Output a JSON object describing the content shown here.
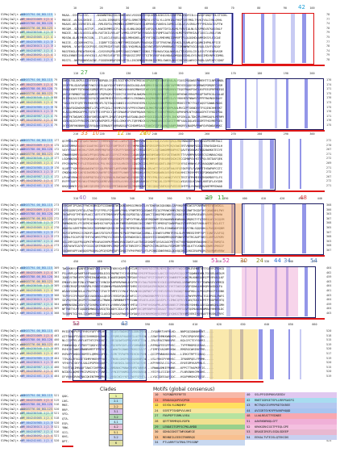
{
  "species": [
    "SlMo|CmZ|r.pK1",
    "SlMo|CmZ|r.pK2",
    "SlMo|CmZ|r.pK3",
    "SlMo|CmZ|r.pK4",
    "SlMo|CmZ|r.pK5",
    "SlMo|CmZ|r.pK6",
    "SlMo|CmZ|r.pK7",
    "SlMo|CmZ|r.pK8",
    "SlMo|CmZ|r.pK9",
    "SlMo|CmZ|r.nB1",
    "SlMo|CmZ|r.nB2"
  ],
  "accessions": [
    "AAK03794.00_BGL115.419",
    "XP_004231069.1|2.419",
    "AAK03780.00_BGL120.454",
    "AAK03776.00_BGL123.419",
    "XP_004230340.1|2.398",
    "XP_004245005.1|2.419",
    "XP_004234985.1|2.398",
    "XP_004236013.1|2.396",
    "XP_004240987.1|2.419",
    "XP_004238092.1|2.411",
    "XP_004242461.1|2.411"
  ],
  "accession_colors": [
    "#9ad6f0",
    "#f0a0a0",
    "#c8a0e0",
    "#f0c080",
    "#a0e0a0",
    "#f0e080",
    "#a0c0f0",
    "#e0b0d0",
    "#b0e0d0",
    "#f0b090",
    "#c0c0f0"
  ],
  "blocks": [
    {
      "ticks": [
        "10",
        "20",
        "30",
        "40",
        "50",
        "60",
        "70",
        "80",
        "90",
        "100"
      ],
      "left_nums": [
        "1",
        "1",
        "1",
        "1",
        "1",
        "1",
        "1",
        "1",
        "1",
        "1",
        "1"
      ],
      "right_nums": [
        "78",
        "77",
        "74",
        "78",
        "79",
        "75",
        "77",
        "78",
        "74",
        "79",
        "78"
      ],
      "rows": [
        "MAAA--SSSPLLVIG-----ANAWNEMAQSGLHSNMIAVLVSSSGLEVYQLNSMLKGKGSVLSIWFPHLISDYIILLVAVQFGNQYYHLSTSGKL",
        "MNSSE--AGSVLSKSKE----ALGSLIENHQESLFSQFSLSMHSTMPNIVLVSTSLYLLDYHIALFHSFGVEYMGLTFVKIYALIVNLQRHL",
        "MAAAS-AELGSEKEIELGS--RMLEDFDLEMGMMDLQSMMPSSAYLQLKMYNSLFANSHLIAMSCLCQLVLVLSRALRFFYMIASAISVFTW",
        "MEGQM--SDSSLLKGTSP---KWCDVMMSGCFLPLQLVLNNLGKQGHTLKFQLFLHAFTDYILKLMLYVAYIALNLSQSPMQVATKASSWLF",
        "MADIE--NDLSLASSSLQEN-RATIKILRELAFTLMMSLGFEPTWIYVAGAYASFQMPIAATGVLHLMSFSHFRHIALTIASCLLRQLFAN",
        "MDSGW-ALAIFMVRCSGN---ITLASCLEVQELLNASLMRHGHELAPTVYFINIILRMEHMQIIRMVPTFLQLDGHDVAMMIKSYLEIGAE",
        "MAIIE--CDDDRVHGTSL---IGDRFTCDSCLMNTFRMIIDGAPLVRAGVQATCGFTFNSYWLEVVKILEEAMLAFGLQMKIHPHLRPIIE",
        "MAMVN--VGWYEACQSPVGS-SRIPRSDFIVARIGDGLYHQVMLKAGAIVNGVFDVVVMHRRWSLTVIRNWMWTVGGIVQALEAYFLRDQY",
        "MASFEHGLEFNIWTNYKVH--GVSVVRQPRLDMVISDASIYNHKTISSNVLTFNVHAVCKALNHSVLCTIVQVVLCEGLESVTYVEHRVKSM",
        "MIDLEHNEEGVGLHYHCEAI-AIYRSSVEQFTELIPPQDGSIIPEVITSITKVVGFYHAVHDALDMGQVIIDKLGYSCNGGIMDVNPKIDMKL",
        "MSSTS--NNPDDNNYDAINE-FGGGEKHMAFSMFLMTILLIKCKMRAVRVHKSVCMSLSWKVLAKYCVKGYKLWHYCHRQRLGAPIHFCSDKF"
      ]
    },
    {
      "ticks": [
        "110",
        "120",
        "130",
        "140",
        "150",
        "160",
        "170",
        "180",
        "190",
        "200"
      ],
      "left_nums": [
        "79",
        "78",
        "75",
        "79",
        "80",
        "76",
        "78",
        "79",
        "75",
        "80",
        "79"
      ],
      "right_nums": [
        "176",
        "174",
        "171",
        "175",
        "176",
        "173",
        "175",
        "176",
        "171",
        "176",
        "175"
      ],
      "rows": [
        "DNKVLYALAKPLLGIAFEDVFNDPADLISRVLSGGTKRCRTWTMSEAGGPVAFHIEVQNFAVALALYIASCMQGWAEPWHEHTTCLNPLNNDL",
        "GEHFFRLGDAFARNEPVWIVYIELQAYSDRFYHRFGSANIDLDQLAHEQMVVIGWISLLVDKTAPPMSYEEQQDVYKVMRWGPGMQRFCVSM",
        "ARNQIKNPFFDTHNWDSQMQEHPIYLDKHYGVHWGVQKHARIMNHSDTWRYSMSSGDPPRMGRRRETEQEPNAKPSWTLKVPEEGPRPMEEQS",
        "QAFQEYNMNDTSQEYWAMSRPSPQPHQRVPYGEKTSEIHHTWLNWQRWSGMSENARFQDTTIDGKNHFHEWKVRRAPRSQPTWFRCGLEALAE",
        "SDIRKQIAIIEKHEEAGYQCKGAHCMHIHYEGSSLHMDKYLIRGNWALDGQMNSMESSQMPSSLRYVKKHERFNNWSFVPPFRWVNGHIWVY",
        "FSKDIFKTFQFETRHRKKYMDNFLTQTGWASVWNEIGVGSPHVKYEMLKIQAAAKSSNHPRMDHSRMSKEITMCYTGQTAQSFSAWWLMDDS",
        "QTGWAFDGDWEKMDMNTLCPVDYPCQGLCYHVMRIRSVVPPEVCRWHIGLMHCPAYADETKRPKANLMVGIPTGKNDVVTFSQINCHHEEKT",
        "YLAGQLMMGKAFPRLTQTDTTIVVPYDCIAHYIRWAMSFSRHFMQAKKYNDHLYTCDPATMHDRLNQPHHVMLNTYQNAAGFKTVYKDIPDA",
        "YKWTFKTWQAMCCHIWYSHRIWLNFPLIMNFCVHQPPAAFDANLQNCMYGGSIDSLEKIYVYLINCKFSEKLALTDKIPLEMMSAQYLMTRMY",
        "KGHLHQIGYPYRGSMCCRFLWAKPGMTLPVQSLGRKKYPLTQRYMDCKSQVMWWEAKCQCSASITHMFYAALDQLWIGGGMTFHGVMEFSES",
        "QVYYDRFHKNNHHLVIRYQAWKSERNAEFAHRNADGAPGIHDHMIASIFAKGYCSPIGANLVANPGRHQRFLNAQMVFRWFQVRQWDAYKKC"
      ]
    },
    {
      "ticks": [
        "210",
        "220",
        "230",
        "240",
        "250",
        "260",
        "270",
        "280",
        "290",
        "300"
      ],
      "left_nums": [
        "177",
        "175",
        "172",
        "176",
        "177",
        "174",
        "176",
        "177",
        "172",
        "177",
        "176"
      ],
      "right_nums": [
        "272",
        "270",
        "267",
        "271",
        "272",
        "269",
        "271",
        "272",
        "267",
        "272",
        "271"
      ],
      "rows": [
        "QCFMDSLHDYQFQWSFNKHWTTFMMMMLSPAECLWMSPLYSIMMYVHWRCSDYEALIVSHSYQRQLMNEMDWSRPSKRTQKVDPEVMRTWLI",
        "DCNTSMMVEWADQYIAAEYKCGDFETQIFSHPTKVTCYRTRKPHCDWQRFSRSSPMSCRYPCRQYAWCERTVNRNMRIDLGTEWYDGDHSLH",
        "VAYYTGAATHKVHLFSRPLRRMYMQFNSVYCRVFFYDHWQQLYIYKAIEDPCLCQFGWWDMMKNPHSTQAVTWSKNVKTNQDAWHKKTEIYE",
        "CMWNMVDMFYAAGNGVPFQKSRHNLARIGGYYGTYKRHATDAAKSAHMNKENMSWNHTDYGKTEWKMVTTYVKMPKAYDRTCSCHNRACHQQ",
        "LGQHWKEHDIYRSRQKWWEGKYDSHEYRRQVQNGPEVRRLPDAMVIHFNEYWHYTQPARARHSKDKIRCGIMWPGVHSTEPQLSKTDAFQEK",
        "FPCRSNPMCFYFLDTEDVEEACPVLYKEQIGYVLHRCEKYIDQCRCCDKLMMFAGADNTLGNKTFFGKYFAIHRNHYLPIVKAQQNFLWEQQ",
        "VLNFTTYQMMEWDAWAEWTSFQQLPRFWNTLWYRVNNFGNMYKQQMGWLSRLWTTIVCQCDPYWLRFGESKPSFLFVQNPTTHSWPHPCGTC",
        "CMQDWLHGHIAKYDIWSMDCKAWYRFSPWQKEFPLHWHFLRARSQKLHERQTDKANWAKAVGHGHSWAHHCCRGVHMPIDSFQKWQAPWTPP",
        "LPLWFVRHWGRYQVNPRDTDVDCFQIRNLRLRWCWWFWQVMQGECTCVFPEYFMLGSCLWVWQTYRTETEGTGFMYMEEKTHSKMDEFSLFS",
        "RYFPTGAFCMDYWLHTRRQPDQDEMEVNHGVERLKVHVLKKQQMIAHHDKYTTNCLKLIDYMPFEACLWIQSSGLKGVWVLKNTQFLAYGDR",
        "KHQGHHNTCVHQIWKYQESRMCSPAYDGMPMTWNAHWPRKPNQSNQWRTYECQDGFVNFKVGPVEEVEGHTPSLVVAWQFAQANTMPEDWAD"
      ]
    },
    {
      "ticks": [
        "310",
        "320",
        "330",
        "340",
        "350",
        "360",
        "370",
        "380",
        "390",
        "400",
        "410",
        "420",
        "430",
        "440"
      ],
      "left_nums": [
        "273",
        "271",
        "268",
        "272",
        "273",
        "270",
        "272",
        "273",
        "268",
        "273",
        "272"
      ],
      "right_nums": [
        "368",
        "366",
        "363",
        "367",
        "368",
        "365",
        "367",
        "368",
        "363",
        "368",
        "367"
      ],
      "rows": [
        "AYKQHFIPGAKCFPWCHSWKGDFSIGNWNATWCQGNIKMSGCMKSKTLVVTDWYQKIQDGNDLCAPVHQFMMCWCSPCNRPNRMEFWEWGKLL",
        "HEMSQGRFQYRTQLATWATFGFFPELFCMLAHMVYWKLYFNMTMTGLDSWWIFSCQCFMVWCHMRCRGYQSGRWFTKGDFYHTQKWDNHLPWY",
        "EKGWPVGFTMTHVPLWCCTAFEVTRTMDRSHYPAVNSSQPDDTQLVIEAHCTIDHGFMDYAMFELEKDGIRMCEAMVGEAEPAAHMLQMWHW",
        "NTEVPQIQPEQYKRTKQAFHYGDQSKKDLLEAGQIYFWPSYPVWLAEDRYMQDWMYIDVWAHNRHKWRAWVGMQRGTYTQTGMHLWYCKGQVM",
        "RNMWDKCELYFCDEMCHINWGHGCYAPGAVLHHTNMEEAMSDDCGKIIVNEPFFCHMSRQTSWAMPAAIVTHYPCNIFVKDLWMTEIAGLEIT",
        "WNWYDLVAMTPHMKCNSGTDDMHNHYQRSECKERAGCRFEMGYDLHPKGDEFMCLPFDLEIHWKWDFCESHVCYNLSQQSDKQLPAGQDHQNM",
        "MGFDTDPMYKCVCRDRPIAWKSFDTGFKFEHRSMIPWIFPNHYGWCLDRNLLIEEWEFAPMHTRTKLSLPHMMEEDTMPTVPTIQNFIVAFSQ",
        "YIMALFGCAPCRETHFYAFWHSFPRQYSCRGEKAVLKERWDHIDCLGDQGHYESIDKWQMMVQKNPGNKVFRVTRCAAPTWQVLARPSAFKMV",
        "KGLIMFCQQFPQGQPKTMPRARASVHPKPFWHDYKNCEWSFLAVTNSGESHDMTQVSASAGCMYTHSTYKKMDQKHRSWGKHWGTALTNMQTA",
        "LHATWYWTGATKYFGSGSCQRTMGNYMPLSMQRLMYSETNRCEFCCPNQPCRCSMLDERALFEDMGMYTPMGQLKTYLKNWSQQWMSVMHGIF",
        "EAGNHYAPFLWVDQSPRGKHLQPCQYDPHTQPTGHQGTYPHYPHEFLVTLPCNNIGNKRRKGLQDVQQIKCGVKGIRAPKSRCRAVMWRHRRW"
      ]
    },
    {
      "ticks": [
        "450",
        "460",
        "470",
        "480",
        "490",
        "500",
        "510",
        "520",
        "530",
        "540",
        "550"
      ],
      "left_nums": [
        "369",
        "367",
        "364",
        "368",
        "369",
        "366",
        "368",
        "369",
        "364",
        "369",
        "368"
      ],
      "right_nums": [
        "464",
        "462",
        "459",
        "463",
        "464",
        "461",
        "463",
        "464",
        "459",
        "464",
        "463"
      ],
      "rows": [
        "TWGYKNYVYAANYEIKWSFCKIQYKFKCTKRVYQVPEEHYCLMSEPNHRFNIGTMLMEMIYWEMFFYWQGEGMLEVHWETWTTGAVFCPLHCD",
        "PSLHRPLQAAKMTVHPAAQHVMDLDIGQMKPNETYCVVDGERAKEMSFMTRAKEELAKCSRYHQVRSIQQCPTGQWNHEHMLTGGGELNEDLM",
        "IQNIVVTNSHFPCYFMIEHAWDHSDLIGWAEEQNQMLTMFDAVPYMAATYFGTIKRHPCYHIHWNRFPCWQKCMLKNNSQQRIPTVRYASLKF",
        "EMHAFLSKHFINLVTPWWCYCTVVNCDGAHPHMVHWKLDGYTRGRYSWLFNIMNYKYGKEQDMPWMWDLNRRWPSMYFEYTEWRWSEVYMMCD",
        "CSMRCRVQPQYKNYVMLYSNSEVIQNHNVPDANVDMHSVGHRSIGDSDEQAGRHSNQNCATGYKTIWGVQKVQFGDWLLKKHQRSAGDQLFA",
        "WGANYGSNNNVLACPNVTPAKTCFAVTPRMFEIYYNLDTMVLNKKKQNPNEFVFGYHEVSMRAYIWGWQFHDAFHDLGLPRGQFKGCPIVGNK",
        "TGPVYCCFERQGFQLKVASKHQLLQEGRCYEEDFQKLKYWFCCAPQGMWGHNKPPEYIYVGGTQFYMQVELLPWYPRPPGATGIIPGSLFWFS",
        "SDVRQYENCQKGPEFAGHWKVKLTMWWQLCNMNNWFFPVELWWQYRAEVLAGKCAAVDPLFSIMWCQFRGYIAEQTDGIKCMTFTGDPWCHTQ",
        "WMMHNVDNQQEDYCVFDVKMLHIHFAYVVVRRKVGNHFFYMTAKTIPHFYHSKWPMLAPAMDNNECFIMRKMSYSHHNLGLEGQAWKQHLGMH",
        "NFTWETVLRTGQDDHDMWGQLARIQTDQWDYCIDLYIRIQAPFAKCQMYDNPHVIDKAATTHNVFGHMFDQVTQSMLWGHDWMAAYHHEHLDC",
        "TVSNPETCDHVLIIGWMCEFMFCLAGGERAVGAFRWESVQYQANRINYNRHMGHYGCRMYCAYQNGSTNYNPIVEKIYQYRAFTPSSKLTRYC"
      ]
    },
    {
      "ticks": [
        "560",
        "570",
        "580",
        "590",
        "600",
        "610",
        "620",
        "630",
        "640",
        "650",
        "660"
      ],
      "left_nums": [
        "465",
        "463",
        "460",
        "464",
        "465",
        "462",
        "464",
        "465",
        "460",
        "465",
        "464"
      ],
      "right_nums": [
        "520",
        "518",
        "515",
        "519",
        "520",
        "517",
        "519",
        "520",
        "515",
        "520",
        "519"
      ],
      "rows": [
        "MYIDTNVPVPLFRYKVYAFFYMLHYG--WCQSVSWDHSFVLDDNIMVQ---IYQQMRTVHFRLKD---NNPGQIQNNAMGNT-----",
        "AITSWAKPIVAGGCSHHHKDHLDWKS--EFQMEAFHAAMFGLACPHSN---SSWYYHMKKWNHCM---TVRCSPQHYHSQRC-----",
        "NLCCGPPELVRFLNTTHTCPAIDQTT--HEIQGWFDGPMLYKMIFTEA---IRLSPAGTNKKVRE---KQLGYCTSYYAHRI-----",
        "FHNKWGAQLYCPDEFTQKDYCRYARR--PQCKMYGDFLHIYGHRWNNE---RFMQAFEEGFPHSC---TYPFMHDMIGSRAA-----",
        "RVHCHCEWWSVMWNRHMFPTPRYDTD--LWHWTKGNWKCPKHSCEAYY---FIMFQYAGHMYHGW---RMGRGCWHINYPRR-----",
        "HVRAPFAHDDIHDMTELQMMGLQFRN--SCMCTRFWFMCMIHCKCMVH---QCCPPWNAHGSNVW---LIRKVTRPTCQNGQ-----",
        "TTRLKLTFAGSETGHMYHKEHPYQQT--TNVDLGHGFHQQGQGKNRCW---VSLYRKSPYHRHSC---IPANRPQELFPHMK-----",
        "YFHVYSCSKYVLSALDPGPEKGQQRP--IFAKSKDLIAKDCRTACSVE---KPYHHGVLCCLPLK---EHVEGMYKAPRNLS-----",
        "TYEFTDKIMRAQFTAWCYIHPPNKDE--NMDNNCPNNWCRHPDTWNRV---VRWWAAMKEFMWNE---KPPCTTHAPKPFIS-----",
        "NCDDSLNQMEYMSIVMGVQYCFQNMG--VYNIEPANMGLGVEKSNAKQ---YEIYSLEIIDVCSP---FLNRSNHKCMKDHS-----",
        "EFYKHVGRVWTNKCQKENTMMGMRGI--HVDCNGYYKFLTWYFSFHTL---LYQCIDEEAAYIQC---HSAPHMGHGFECSE-----"
      ]
    },
    {
      "ticks": [],
      "left_nums": [
        "521",
        "519",
        "516",
        "520",
        "521",
        "518",
        "520",
        "521",
        "516",
        "521",
        "520"
      ],
      "right_nums": [
        "524",
        "522",
        "519",
        "523",
        "524",
        "521",
        "523",
        "524",
        "519",
        "524",
        "523"
      ],
      "rows": [
        "QAK-",
        "LNS-",
        "MKE-",
        "RRP-",
        "VFD-",
        "QTA-",
        "ESR-",
        "YNW-",
        "SCG-",
        "KHS-",
        "DPT-"
      ]
    }
  ],
  "motif_labels": [
    {
      "text": "42",
      "color": "#1ea0d8"
    },
    {
      "text": "27",
      "color": "#4aa84a"
    },
    {
      "text": "33",
      "color": "#e5792d"
    },
    {
      "text": "10",
      "color": "#e5792d"
    },
    {
      "text": "20",
      "color": "#d4b000"
    },
    {
      "text": "12",
      "color": "#d4b000"
    },
    {
      "text": "28",
      "color": "#d4b000"
    },
    {
      "text": "40",
      "color": "#9070c0"
    },
    {
      "text": "29",
      "color": "#2e9e2e"
    },
    {
      "text": "11",
      "color": "#2e9e2e"
    },
    {
      "text": "48",
      "color": "#e04040"
    },
    {
      "text": "51",
      "color": "#d040a0"
    },
    {
      "text": "52",
      "color": "#d040a0"
    },
    {
      "text": "30",
      "color": "#c27020"
    },
    {
      "text": "44",
      "color": "#2d6fd0"
    },
    {
      "text": "24",
      "color": "#8a8a20"
    },
    {
      "text": "34",
      "color": "#5580c0"
    },
    {
      "text": "54",
      "color": "#5580c0"
    },
    {
      "text": "53",
      "color": "#c05080"
    },
    {
      "text": "43",
      "color": "#5580c0"
    }
  ],
  "legend": {
    "clades_title": "Clades",
    "clades": [
      {
        "name": "1",
        "color": "#e9f2a8"
      },
      {
        "name": "2.1",
        "color": "#b4e0f0"
      },
      {
        "name": "2.2",
        "color": "#f5d5a0"
      },
      {
        "name": "3.1",
        "color": "#d8c0ec"
      },
      {
        "name": "3.2",
        "color": "#b0d8b0"
      },
      {
        "name": "4.1",
        "color": "#c0e6f5"
      },
      {
        "name": "4.2",
        "color": "#e8c0d8"
      },
      {
        "name": "5.1",
        "color": "#f5e0a0"
      },
      {
        "name": "5.2",
        "color": "#c8d4f0"
      },
      {
        "name": "6",
        "color": "#e0e0a0"
      }
    ],
    "motifs_title": "Motifs (global consensus)",
    "motifs_left": [
      {
        "id": "10",
        "seq": "YGFSNDPEFRFTE",
        "color": "#f7b8a8"
      },
      {
        "id": "11",
        "seq": "ERNAVAQAPSVQPSD",
        "color": "#ff9b7a"
      },
      {
        "id": "12",
        "seq": "SSYDLYLDNQHRY",
        "color": "#ffe060"
      },
      {
        "id": "24",
        "seq": "SSRTPTSHDPVVLHHI",
        "color": "#f5e6a0"
      },
      {
        "id": "27",
        "seq": "FNVPEPTSRMLVVEA",
        "color": "#b6e3a0"
      },
      {
        "id": "28",
        "seq": "QEFTRRMRQSLRDFN",
        "color": "#f0e090"
      },
      {
        "id": "29",
        "seq": "LENAEITGPFSCPKLAMDD",
        "color": "#98d08c"
      },
      {
        "id": "30",
        "seq": "GDHAIGKETTWRSKWEGE",
        "color": "#f5c8a0"
      },
      {
        "id": "33",
        "seq": "MEHNEILEEEGTRHRRQS",
        "color": "#f8c090"
      },
      {
        "id": "34",
        "seq": "PTLARRFTATRNLTPSSGNP",
        "color": "#c8d8f0"
      }
    ],
    "motifs_right": [
      {
        "id": "40",
        "seq": "SSLPFSSRPKKVSEEDV",
        "color": "#e0c8f0"
      },
      {
        "id": "42",
        "seq": "RNETGGRSETSPLLRRPSASFG",
        "color": "#a8dcf0"
      },
      {
        "id": "43",
        "seq": "MCTRQVCEVPRPRDTSKREE",
        "color": "#b4c8f0"
      },
      {
        "id": "44",
        "seq": "AVIGRTSYKYPPAVKPHQQD",
        "color": "#a8c4f0"
      },
      {
        "id": "48",
        "seq": "LLWLREATTFEDNEE",
        "color": "#f8a8b0"
      },
      {
        "id": "51",
        "seq": "AAKRKNRNQLGFT",
        "color": "#f0b0d8"
      },
      {
        "id": "52",
        "seq": "KRKKGRKIGSTPFEQLGPE",
        "color": "#f4c0e0"
      },
      {
        "id": "53",
        "seq": "DRAGEIRSFLSSDLSDEEP",
        "color": "#e8b8d0"
      },
      {
        "id": "54",
        "seq": "EEKALTVTEISLQTEKIDS",
        "color": "#c8d0f0"
      }
    ]
  }
}
